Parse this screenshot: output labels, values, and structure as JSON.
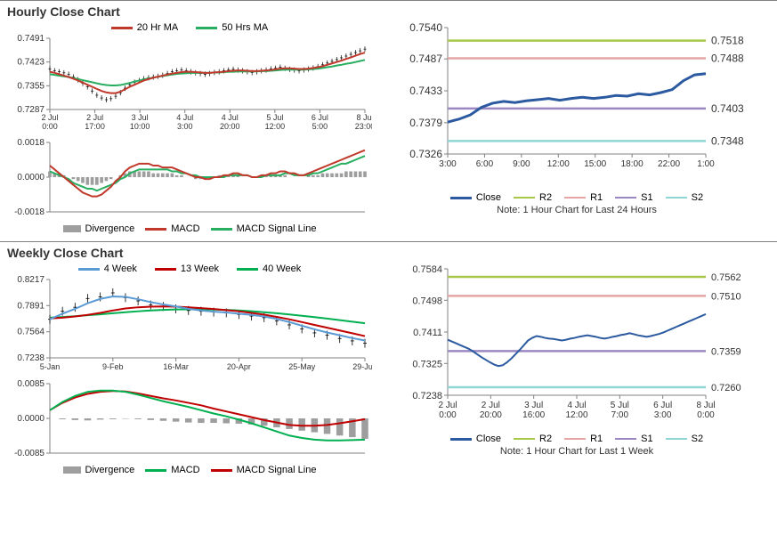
{
  "hourly": {
    "title": "Hourly Close Chart",
    "price_chart": {
      "type": "line",
      "ylim": [
        0.7287,
        0.7491
      ],
      "yticks": [
        0.7287,
        0.7355,
        0.7423,
        0.7491
      ],
      "ytick_labels": [
        "0.7287",
        "0.7355",
        "0.7423",
        "0.7491"
      ],
      "xticks_labels": [
        "2 Jul\n0:00",
        "2 Jul\n17:00",
        "3 Jul\n10:00",
        "4 Jul\n3:00",
        "4 Jul\n20:00",
        "5 Jul\n12:00",
        "6 Jul\n5:00",
        "8 Jul\n23:00"
      ],
      "label_fontsize": 10,
      "grid_color": "#e0e0e0",
      "bg_color": "#ffffff",
      "series": {
        "close_candles": {
          "color": "#000000",
          "data": [
            0.7403,
            0.7398,
            0.7395,
            0.7392,
            0.7388,
            0.738,
            0.7372,
            0.7362,
            0.7352,
            0.734,
            0.7328,
            0.732,
            0.7315,
            0.7318,
            0.7325,
            0.7335,
            0.7348,
            0.7358,
            0.7365,
            0.737,
            0.7375,
            0.7378,
            0.738,
            0.7382,
            0.7385,
            0.739,
            0.7395,
            0.7398,
            0.74,
            0.7398,
            0.7395,
            0.7392,
            0.739,
            0.7388,
            0.739,
            0.7393,
            0.7395,
            0.7398,
            0.74,
            0.7402,
            0.74,
            0.7398,
            0.7395,
            0.7393,
            0.7395,
            0.7398,
            0.74,
            0.7403,
            0.7405,
            0.7408,
            0.7405,
            0.7402,
            0.74,
            0.7398,
            0.74,
            0.7403,
            0.7406,
            0.741,
            0.7415,
            0.742,
            0.7425,
            0.743,
            0.7435,
            0.744,
            0.7445,
            0.745,
            0.7455,
            0.746
          ]
        },
        "ma20": {
          "name": "20 Hr MA",
          "color": "#c0392b",
          "width": 2,
          "data": [
            0.7395,
            0.7392,
            0.7388,
            0.7384,
            0.738,
            0.7375,
            0.737,
            0.7364,
            0.7358,
            0.7352,
            0.7346,
            0.734,
            0.7336,
            0.7334,
            0.7334,
            0.7338,
            0.7345,
            0.7352,
            0.7358,
            0.7364,
            0.737,
            0.7374,
            0.7378,
            0.7381,
            0.7384,
            0.7387,
            0.739,
            0.7392,
            0.7394,
            0.7395,
            0.7395,
            0.7394,
            0.7393,
            0.7392,
            0.7392,
            0.7393,
            0.7394,
            0.7395,
            0.7397,
            0.7398,
            0.7399,
            0.7399,
            0.7398,
            0.7397,
            0.7397,
            0.7398,
            0.7399,
            0.74,
            0.7402,
            0.7404,
            0.7405,
            0.7405,
            0.7404,
            0.7403,
            0.7403,
            0.7404,
            0.7406,
            0.7408,
            0.7411,
            0.7415,
            0.7419,
            0.7423,
            0.7427,
            0.7432,
            0.7436,
            0.7441,
            0.7446,
            0.745
          ]
        },
        "ma50": {
          "name": "50 Hrs MA",
          "color": "#27ae60",
          "width": 2,
          "data": [
            0.7388,
            0.7386,
            0.7384,
            0.7382,
            0.738,
            0.7377,
            0.7374,
            0.7371,
            0.7368,
            0.7365,
            0.7362,
            0.7359,
            0.7357,
            0.7356,
            0.7356,
            0.7357,
            0.736,
            0.7363,
            0.7367,
            0.737,
            0.7373,
            0.7376,
            0.7378,
            0.7381,
            0.7383,
            0.7385,
            0.7387,
            0.7389,
            0.739,
            0.7391,
            0.7392,
            0.7392,
            0.7392,
            0.7392,
            0.7392,
            0.7393,
            0.7393,
            0.7394,
            0.7395,
            0.7395,
            0.7396,
            0.7396,
            0.7396,
            0.7396,
            0.7396,
            0.7397,
            0.7397,
            0.7398,
            0.7399,
            0.74,
            0.7401,
            0.7401,
            0.7401,
            0.7401,
            0.7401,
            0.7402,
            0.7403,
            0.7404,
            0.7406,
            0.7408,
            0.741,
            0.7413,
            0.7415,
            0.7418,
            0.742,
            0.7423,
            0.7426,
            0.7429
          ]
        }
      }
    },
    "macd_chart": {
      "type": "line",
      "ylim": [
        -0.0018,
        0.0018
      ],
      "yticks": [
        -0.0018,
        0.0,
        0.0018
      ],
      "ytick_labels": [
        "-0.0018",
        "0.0000",
        "0.0018"
      ],
      "label_fontsize": 10,
      "histogram_color": "#9e9e9e",
      "series": {
        "divergence": {
          "name": "Divergence",
          "data": [
            0.0003,
            0.0002,
            0.0002,
            0.0001,
            0.0,
            -0.0001,
            -0.0002,
            -0.0003,
            -0.0004,
            -0.0004,
            -0.0004,
            -0.0003,
            -0.0002,
            -0.0001,
            0.0,
            0.0001,
            0.0002,
            0.0003,
            0.0003,
            0.0003,
            0.0003,
            0.0003,
            0.0002,
            0.0002,
            0.0002,
            0.0002,
            0.0002,
            0.0001,
            0.0001,
            0.0,
            0.0,
            -0.0001,
            -0.0001,
            -0.0001,
            0.0,
            0.0,
            0.0001,
            0.0001,
            0.0001,
            0.0001,
            0.0001,
            0.0,
            0.0,
            0.0,
            0.0,
            0.0001,
            0.0001,
            0.0001,
            0.0001,
            0.0001,
            0.0001,
            0.0,
            0.0,
            0.0,
            0.0,
            0.0001,
            0.0001,
            0.0001,
            0.0002,
            0.0002,
            0.0002,
            0.0002,
            0.0002,
            0.0003,
            0.0003,
            0.0003,
            0.0003,
            0.0003
          ]
        },
        "macd": {
          "name": "MACD",
          "color": "#c0392b",
          "width": 2,
          "data": [
            0.0006,
            0.0004,
            0.0002,
            0.0,
            -0.0002,
            -0.0004,
            -0.0006,
            -0.0008,
            -0.0009,
            -0.001,
            -0.001,
            -0.0009,
            -0.0007,
            -0.0005,
            -0.0002,
            0.0,
            0.0003,
            0.0005,
            0.0006,
            0.0007,
            0.0007,
            0.0007,
            0.0006,
            0.0006,
            0.0005,
            0.0005,
            0.0005,
            0.0004,
            0.0003,
            0.0002,
            0.0001,
            0.0,
            0.0,
            -0.0001,
            -0.0001,
            0.0,
            0.0,
            0.0001,
            0.0001,
            0.0002,
            0.0002,
            0.0001,
            0.0001,
            0.0,
            0.0,
            0.0001,
            0.0001,
            0.0002,
            0.0002,
            0.0003,
            0.0003,
            0.0002,
            0.0002,
            0.0001,
            0.0001,
            0.0002,
            0.0003,
            0.0004,
            0.0005,
            0.0006,
            0.0007,
            0.0008,
            0.0009,
            0.001,
            0.0011,
            0.0012,
            0.0013,
            0.0014
          ]
        },
        "signal": {
          "name": "MACD Signal Line",
          "color": "#27ae60",
          "width": 2,
          "data": [
            0.0003,
            0.0002,
            0.0001,
            0.0,
            -0.0001,
            -0.0003,
            -0.0004,
            -0.0005,
            -0.0006,
            -0.0006,
            -0.0007,
            -0.0006,
            -0.0005,
            -0.0004,
            -0.0003,
            -0.0001,
            0.0,
            0.0002,
            0.0003,
            0.0004,
            0.0004,
            0.0004,
            0.0004,
            0.0004,
            0.0004,
            0.0004,
            0.0003,
            0.0003,
            0.0002,
            0.0002,
            0.0001,
            0.0001,
            0.0,
            0.0,
            0.0,
            0.0,
            0.0,
            0.0,
            0.0001,
            0.0001,
            0.0001,
            0.0001,
            0.0001,
            0.0,
            0.0,
            0.0,
            0.0001,
            0.0001,
            0.0001,
            0.0001,
            0.0002,
            0.0002,
            0.0001,
            0.0001,
            0.0001,
            0.0001,
            0.0002,
            0.0002,
            0.0003,
            0.0004,
            0.0005,
            0.0006,
            0.0007,
            0.0007,
            0.0008,
            0.0009,
            0.001,
            0.0011
          ]
        }
      }
    },
    "sr_chart": {
      "type": "line",
      "ylim": [
        0.7326,
        0.754
      ],
      "yticks": [
        0.7326,
        0.7379,
        0.7433,
        0.7487,
        0.754
      ],
      "ytick_labels": [
        "0.7326",
        "0.7379",
        "0.7433",
        "0.7487",
        "0.7540"
      ],
      "xticks_labels": [
        "3:00",
        "6:00",
        "9:00",
        "12:00",
        "15:00",
        "18:00",
        "22:00",
        "1:00"
      ],
      "label_fontsize": 12,
      "grid_color": "#e0e0e0",
      "close": {
        "name": "Close",
        "color": "#2c5aa0",
        "width": 3,
        "data": [
          0.738,
          0.7385,
          0.7392,
          0.7405,
          0.7412,
          0.7415,
          0.7413,
          0.7416,
          0.7418,
          0.742,
          0.7417,
          0.742,
          0.7422,
          0.742,
          0.7422,
          0.7425,
          0.7424,
          0.7428,
          0.7426,
          0.743,
          0.7435,
          0.745,
          0.746,
          0.7462
        ]
      },
      "levels": {
        "R2": {
          "value": 0.7518,
          "label": "0.7518",
          "color": "#a8c84a"
        },
        "R1": {
          "value": 0.7488,
          "label": "0.7488",
          "color": "#e5a5a5"
        },
        "S1": {
          "value": 0.7403,
          "label": "0.7403",
          "color": "#9b88c2"
        },
        "S2": {
          "value": 0.7348,
          "label": "0.7348",
          "color": "#8ed5d5"
        }
      },
      "legend_labels": [
        "Close",
        "R2",
        "R1",
        "S1",
        "S2"
      ],
      "note": "Note: 1 Hour Chart for Last 24 Hours"
    }
  },
  "weekly": {
    "title": "Weekly Close Chart",
    "price_chart": {
      "type": "line",
      "ylim": [
        0.7238,
        0.8217
      ],
      "yticks": [
        0.7238,
        0.7564,
        0.7891,
        0.8217
      ],
      "ytick_labels": [
        "0.7238",
        "0.7564",
        "0.7891",
        "0.8217"
      ],
      "xticks_labels": [
        "5-Jan",
        "9-Feb",
        "16-Mar",
        "20-Apr",
        "25-May",
        "29-Jun"
      ],
      "label_fontsize": 10,
      "series": {
        "candles": {
          "color": "#000000",
          "data": [
            0.772,
            0.782,
            0.787,
            0.798,
            0.8,
            0.805,
            0.799,
            0.795,
            0.79,
            0.788,
            0.785,
            0.783,
            0.782,
            0.781,
            0.78,
            0.778,
            0.776,
            0.774,
            0.77,
            0.765,
            0.76,
            0.755,
            0.752,
            0.748,
            0.745,
            0.742
          ]
        },
        "w4": {
          "name": "4 Week",
          "color": "#5b9bd5",
          "width": 2,
          "data": [
            0.772,
            0.779,
            0.785,
            0.792,
            0.7975,
            0.8005,
            0.8,
            0.797,
            0.7935,
            0.7905,
            0.788,
            0.785,
            0.783,
            0.7815,
            0.7805,
            0.779,
            0.7775,
            0.7755,
            0.7725,
            0.7685,
            0.764,
            0.7595,
            0.7555,
            0.752,
            0.7485,
            0.7455
          ]
        },
        "w13": {
          "name": "13 Week",
          "color": "#c00000",
          "width": 2,
          "data": [
            0.773,
            0.774,
            0.7755,
            0.7775,
            0.78,
            0.783,
            0.7855,
            0.787,
            0.7878,
            0.788,
            0.7878,
            0.787,
            0.786,
            0.7848,
            0.7835,
            0.782,
            0.78,
            0.7778,
            0.775,
            0.772,
            0.7685,
            0.765,
            0.7615,
            0.758,
            0.7545,
            0.751
          ]
        },
        "w40": {
          "name": "40 Week",
          "color": "#00b050",
          "width": 2,
          "data": [
            0.774,
            0.7748,
            0.7758,
            0.777,
            0.7782,
            0.7795,
            0.7808,
            0.782,
            0.783,
            0.7838,
            0.7843,
            0.7845,
            0.7845,
            0.7842,
            0.7837,
            0.783,
            0.782,
            0.7808,
            0.7795,
            0.778,
            0.7764,
            0.7747,
            0.7729,
            0.771,
            0.769,
            0.767
          ]
        }
      }
    },
    "macd_chart": {
      "type": "line",
      "ylim": [
        -0.0085,
        0.0085
      ],
      "yticks": [
        -0.0085,
        0.0,
        0.0085
      ],
      "ytick_labels": [
        "-0.0085",
        "0.0000",
        "0.0085"
      ],
      "histogram_color": "#9e9e9e",
      "label_fontsize": 10,
      "series": {
        "divergence": {
          "name": "Divergence",
          "data": [
            0.0,
            -0.0002,
            -0.0004,
            -0.0005,
            -0.0003,
            -0.0002,
            -0.0001,
            -0.0002,
            -0.0004,
            -0.0006,
            -0.0008,
            -0.001,
            -0.0011,
            -0.0011,
            -0.0012,
            -0.0013,
            -0.0015,
            -0.0018,
            -0.0022,
            -0.0026,
            -0.003,
            -0.0034,
            -0.0038,
            -0.0042,
            -0.0046,
            -0.005
          ]
        },
        "macd": {
          "name": "MACD",
          "color": "#00b050",
          "width": 2,
          "data": [
            0.002,
            0.004,
            0.0055,
            0.0065,
            0.0068,
            0.0068,
            0.0065,
            0.0058,
            0.005,
            0.0042,
            0.0035,
            0.0028,
            0.002,
            0.0012,
            0.0005,
            -0.0003,
            -0.0012,
            -0.0022,
            -0.0032,
            -0.0042,
            -0.0048,
            -0.0052,
            -0.0054,
            -0.0054,
            -0.0053,
            -0.0052
          ]
        },
        "signal": {
          "name": "MACD Signal Line",
          "color": "#c00000",
          "width": 2,
          "data": [
            0.002,
            0.0038,
            0.0051,
            0.006,
            0.0065,
            0.0067,
            0.0066,
            0.0061,
            0.0055,
            0.0049,
            0.0044,
            0.0038,
            0.0032,
            0.0024,
            0.0017,
            0.001,
            0.0003,
            -0.0004,
            -0.001,
            -0.0016,
            -0.0018,
            -0.0018,
            -0.0016,
            -0.0012,
            -0.0007,
            -0.0002
          ]
        }
      }
    },
    "sr_chart": {
      "type": "line",
      "ylim": [
        0.7238,
        0.7584
      ],
      "yticks": [
        0.7238,
        0.7325,
        0.7411,
        0.7498,
        0.7584
      ],
      "ytick_labels": [
        "0.7238",
        "0.7325",
        "0.7411",
        "0.7498",
        "0.7584"
      ],
      "xticks_labels": [
        "2 Jul\n0:00",
        "2 Jul\n20:00",
        "3 Jul\n16:00",
        "4 Jul\n12:00",
        "5 Jul\n7:00",
        "6 Jul\n3:00",
        "8 Jul\n0:00"
      ],
      "label_fontsize": 11,
      "close": {
        "name": "Close",
        "color": "#2c5aa0",
        "width": 2,
        "data": [
          0.739,
          0.7385,
          0.738,
          0.7375,
          0.737,
          0.7365,
          0.7358,
          0.735,
          0.7342,
          0.7335,
          0.7328,
          0.7322,
          0.7318,
          0.732,
          0.7328,
          0.7338,
          0.735,
          0.7362,
          0.7375,
          0.7388,
          0.7395,
          0.74,
          0.7398,
          0.7395,
          0.7393,
          0.7392,
          0.739,
          0.7388,
          0.739,
          0.7393,
          0.7395,
          0.7398,
          0.74,
          0.7402,
          0.74,
          0.7398,
          0.7395,
          0.7393,
          0.7395,
          0.7398,
          0.74,
          0.7403,
          0.7405,
          0.7408,
          0.7405,
          0.7402,
          0.74,
          0.7398,
          0.74,
          0.7403,
          0.7406,
          0.741,
          0.7415,
          0.742,
          0.7425,
          0.743,
          0.7435,
          0.744,
          0.7445,
          0.745,
          0.7455,
          0.746
        ]
      },
      "levels": {
        "R2": {
          "value": 0.7562,
          "label": "0.7562",
          "color": "#a8c84a"
        },
        "R1": {
          "value": 0.751,
          "label": "0.7510",
          "color": "#e5a5a5"
        },
        "S1": {
          "value": 0.7359,
          "label": "0.7359",
          "color": "#9b88c2"
        },
        "S2": {
          "value": 0.726,
          "label": "0.7260",
          "color": "#8ed5d5"
        }
      },
      "legend_labels": [
        "Close",
        "R2",
        "R1",
        "S1",
        "S2"
      ],
      "note": "Note: 1 Hour Chart for Last 1 Week"
    }
  }
}
